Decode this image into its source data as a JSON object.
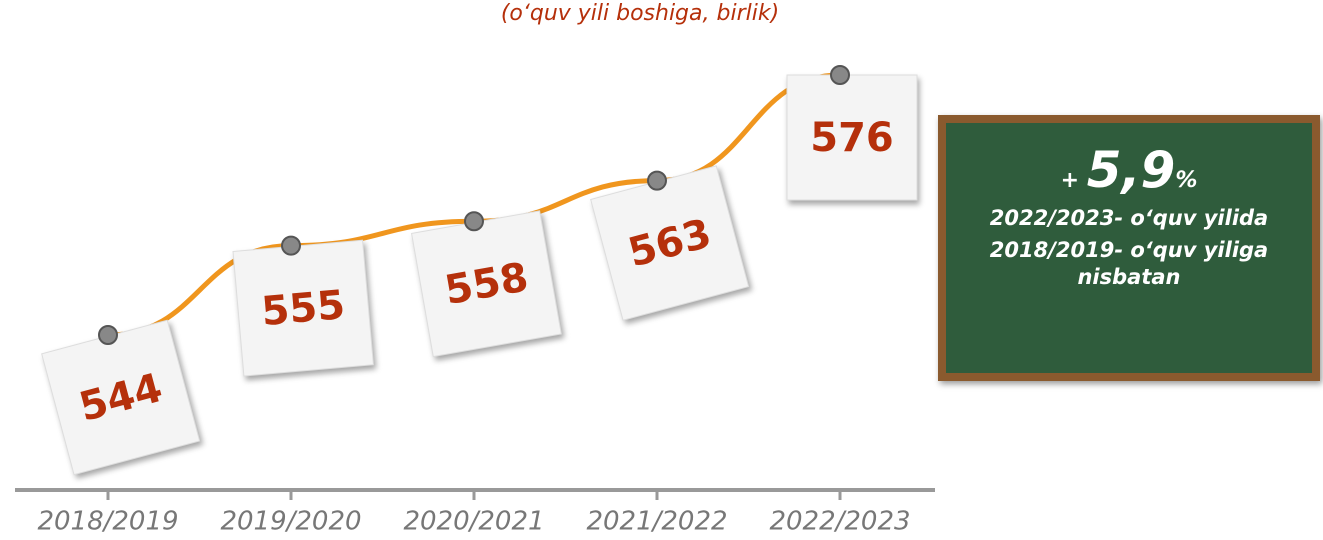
{
  "chart_data": {
    "type": "line",
    "subtitle": "(o‘quv yili boshiga, birlik)",
    "categories": [
      "2018/2019",
      "2019/2020",
      "2020/2021",
      "2021/2022",
      "2022/2023"
    ],
    "values": [
      544,
      555,
      558,
      563,
      576
    ],
    "color": "#f0961e",
    "board": {
      "sign": "+",
      "change": {
        "value": 5.9,
        "label": "5,9"
      },
      "unit": "%",
      "line1": "2022/2023- o‘quv yilida",
      "line2": "2018/2019- o‘quv yiliga nisbatan"
    }
  }
}
